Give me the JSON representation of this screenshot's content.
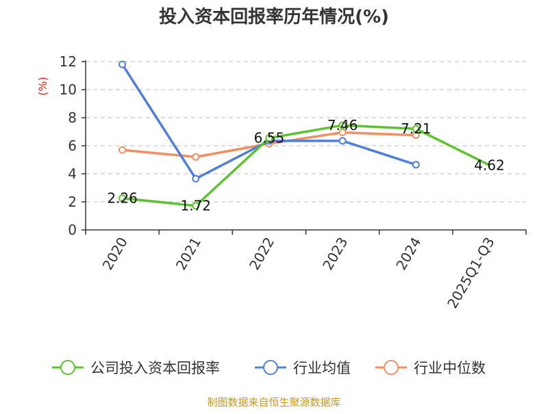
{
  "chart_data": {
    "type": "line",
    "title": "投入资本回报率历年情况(%)",
    "ylabel": "(%)",
    "xlabel": "",
    "categories": [
      "2020",
      "2021",
      "2022",
      "2023",
      "2024",
      "2025Q1-Q3"
    ],
    "ylim": [
      0,
      12
    ],
    "yticks": [
      0,
      2,
      4,
      6,
      8,
      10,
      12
    ],
    "grid": true,
    "legend_position": "bottom",
    "series": [
      {
        "name": "公司投入资本回报率",
        "color": "#5cc22e",
        "values": [
          2.26,
          1.72,
          6.55,
          7.46,
          7.21,
          4.62
        ],
        "labels": [
          "2.26",
          "1.72",
          "6.55",
          "7.46",
          "7.21",
          "4.62"
        ]
      },
      {
        "name": "行业均值",
        "color": "#4f7fdc",
        "values": [
          11.8,
          3.65,
          6.35,
          6.35,
          4.65,
          null
        ]
      },
      {
        "name": "行业中位数",
        "color": "#f58d5f",
        "values": [
          5.7,
          5.2,
          6.15,
          6.95,
          6.75,
          null
        ]
      }
    ]
  },
  "source": "制图数据来自恒生聚源数据库"
}
